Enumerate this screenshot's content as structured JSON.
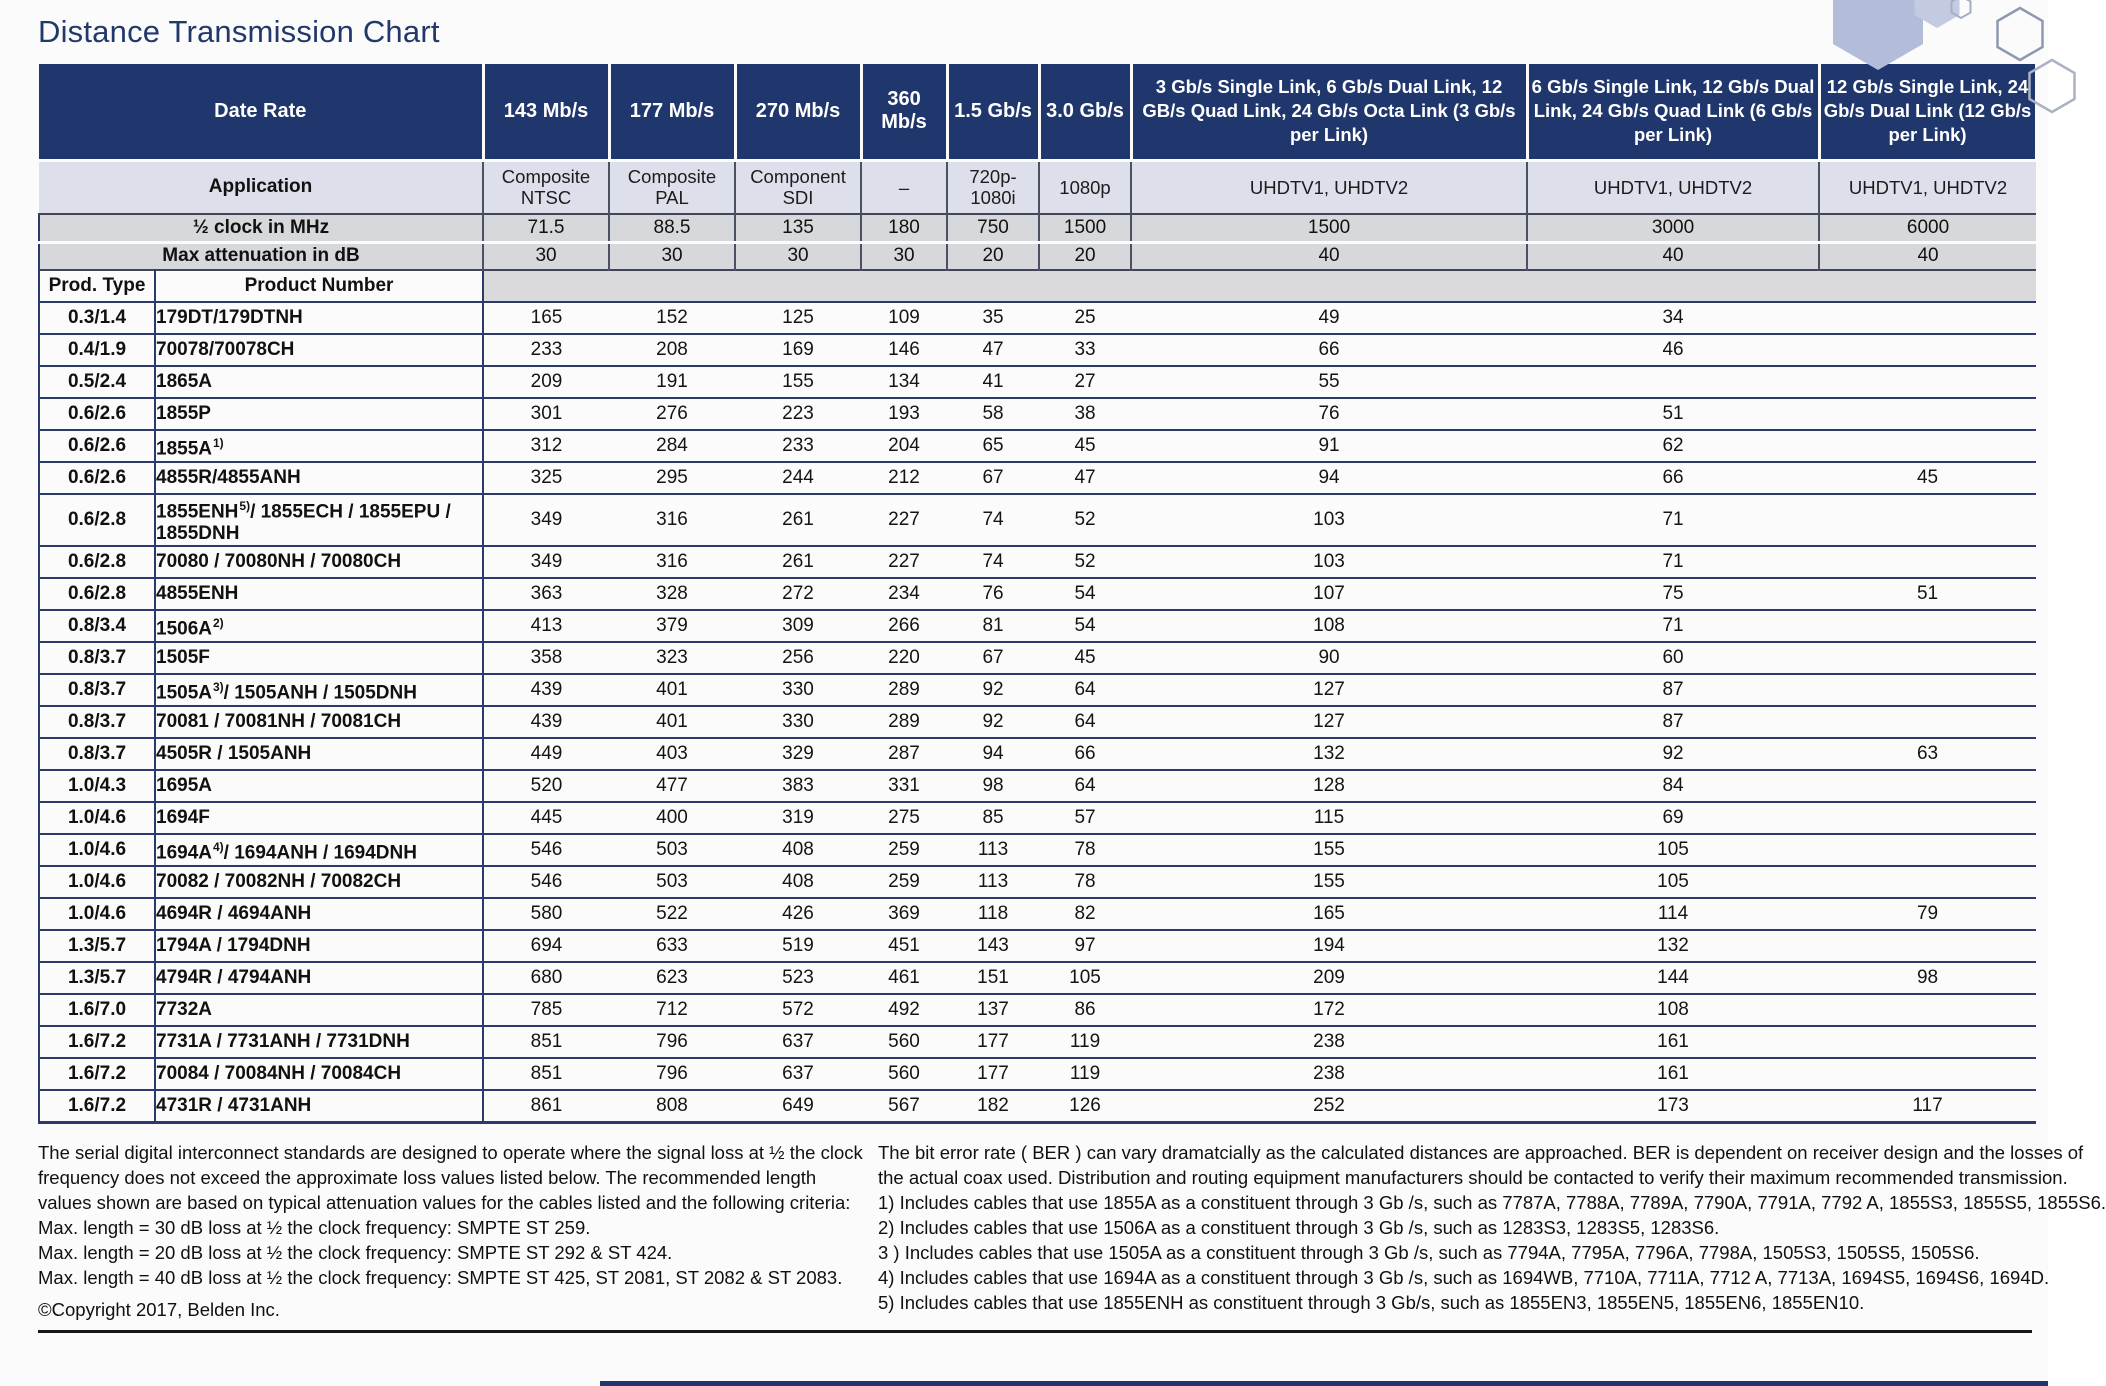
{
  "title": "Distance Transmission Chart",
  "colors": {
    "header_navy": "#20376e",
    "application_row": "#dde0eb",
    "gray_row": "#d6d8db",
    "title_blue": "#22386b",
    "rule_black": "#161616"
  },
  "table": {
    "header": {
      "date_rate_label": "Date Rate",
      "application_label": "Application",
      "half_clock_label": "½ clock in MHz",
      "max_att_label": "Max attenuation in dB",
      "prod_type_label": "Prod. Type",
      "product_number_label": "Product Number",
      "columns": [
        {
          "rate": "143 Mb/s",
          "application": "Composite NTSC",
          "half_clock": "71.5",
          "max_att": "30"
        },
        {
          "rate": "177 Mb/s",
          "application": "Composite PAL",
          "half_clock": "88.5",
          "max_att": "30"
        },
        {
          "rate": "270 Mb/s",
          "application": "Component SDI",
          "half_clock": "135",
          "max_att": "30"
        },
        {
          "rate": "360 Mb/s",
          "application": "–",
          "half_clock": "180",
          "max_att": "30"
        },
        {
          "rate": "1.5 Gb/s",
          "application": "720p- 1080i",
          "half_clock": "750",
          "max_att": "20"
        },
        {
          "rate": "3.0 Gb/s",
          "application": "1080p",
          "half_clock": "1500",
          "max_att": "20"
        },
        {
          "rate": "3 Gb/s Single Link, 6 Gb/s Dual Link, 12 GB/s Quad Link, 24 Gb/s Octa Link (3 Gb/s per Link)",
          "application": "UHDTV1, UHDTV2",
          "half_clock": "1500",
          "max_att": "40"
        },
        {
          "rate": "6 Gb/s Single Link, 12 Gb/s Dual Link, 24 Gb/s Quad Link (6 Gb/s per Link)",
          "application": "UHDTV1, UHDTV2",
          "half_clock": "3000",
          "max_att": "40"
        },
        {
          "rate": "12 Gb/s Single Link, 24 Gb/s Dual Link (12 Gb/s per Link)",
          "application": "UHDTV1, UHDTV2",
          "half_clock": "6000",
          "max_att": "40"
        }
      ]
    },
    "rows": [
      {
        "type": "0.3/1.4",
        "product": "179DT/179DTNH",
        "sup": "",
        "product_rest": "",
        "values": [
          "165",
          "152",
          "125",
          "109",
          "35",
          "25",
          "49",
          "34",
          ""
        ]
      },
      {
        "type": "0.4/1.9",
        "product": "70078/70078CH",
        "sup": "",
        "product_rest": "",
        "values": [
          "233",
          "208",
          "169",
          "146",
          "47",
          "33",
          "66",
          "46",
          ""
        ]
      },
      {
        "type": "0.5/2.4",
        "product": "1865A",
        "sup": "",
        "product_rest": "",
        "values": [
          "209",
          "191",
          "155",
          "134",
          "41",
          "27",
          "55",
          "",
          ""
        ]
      },
      {
        "type": "0.6/2.6",
        "product": "1855P",
        "sup": "",
        "product_rest": "",
        "values": [
          "301",
          "276",
          "223",
          "193",
          "58",
          "38",
          "76",
          "51",
          ""
        ]
      },
      {
        "type": "0.6/2.6",
        "product": "1855A",
        "sup": "1)",
        "product_rest": "",
        "values": [
          "312",
          "284",
          "233",
          "204",
          "65",
          "45",
          "91",
          "62",
          ""
        ]
      },
      {
        "type": "0.6/2.6",
        "product": "4855R/4855ANH",
        "sup": "",
        "product_rest": "",
        "values": [
          "325",
          "295",
          "244",
          "212",
          "67",
          "47",
          "94",
          "66",
          "45"
        ]
      },
      {
        "type": "0.6/2.8",
        "product": "1855ENH",
        "sup": "5)",
        "product_rest": "/ 1855ECH / 1855EPU / 1855DNH",
        "values": [
          "349",
          "316",
          "261",
          "227",
          "74",
          "52",
          "103",
          "71",
          ""
        ]
      },
      {
        "type": "0.6/2.8",
        "product": "70080 / 70080NH / 70080CH",
        "sup": "",
        "product_rest": "",
        "values": [
          "349",
          "316",
          "261",
          "227",
          "74",
          "52",
          "103",
          "71",
          ""
        ]
      },
      {
        "type": "0.6/2.8",
        "product": "4855ENH",
        "sup": "",
        "product_rest": "",
        "values": [
          "363",
          "328",
          "272",
          "234",
          "76",
          "54",
          "107",
          "75",
          "51"
        ]
      },
      {
        "type": "0.8/3.4",
        "product": "1506A",
        "sup": "2)",
        "product_rest": "",
        "values": [
          "413",
          "379",
          "309",
          "266",
          "81",
          "54",
          "108",
          "71",
          ""
        ]
      },
      {
        "type": "0.8/3.7",
        "product": "1505F",
        "sup": "",
        "product_rest": "",
        "values": [
          "358",
          "323",
          "256",
          "220",
          "67",
          "45",
          "90",
          "60",
          ""
        ]
      },
      {
        "type": "0.8/3.7",
        "product": "1505A",
        "sup": "3)",
        "product_rest": "/ 1505ANH / 1505DNH",
        "values": [
          "439",
          "401",
          "330",
          "289",
          "92",
          "64",
          "127",
          "87",
          ""
        ]
      },
      {
        "type": "0.8/3.7",
        "product": "70081 / 70081NH / 70081CH",
        "sup": "",
        "product_rest": "",
        "values": [
          "439",
          "401",
          "330",
          "289",
          "92",
          "64",
          "127",
          "87",
          ""
        ]
      },
      {
        "type": "0.8/3.7",
        "product": "4505R / 1505ANH",
        "sup": "",
        "product_rest": "",
        "values": [
          "449",
          "403",
          "329",
          "287",
          "94",
          "66",
          "132",
          "92",
          "63"
        ]
      },
      {
        "type": "1.0/4.3",
        "product": "1695A",
        "sup": "",
        "product_rest": "",
        "values": [
          "520",
          "477",
          "383",
          "331",
          "98",
          "64",
          "128",
          "84",
          ""
        ]
      },
      {
        "type": "1.0/4.6",
        "product": "1694F",
        "sup": "",
        "product_rest": "",
        "values": [
          "445",
          "400",
          "319",
          "275",
          "85",
          "57",
          "115",
          "69",
          ""
        ]
      },
      {
        "type": "1.0/4.6",
        "product": "1694A",
        "sup": "4)",
        "product_rest": "/ 1694ANH / 1694DNH",
        "values": [
          "546",
          "503",
          "408",
          "259",
          "113",
          "78",
          "155",
          "105",
          ""
        ]
      },
      {
        "type": "1.0/4.6",
        "product": "70082 / 70082NH / 70082CH",
        "sup": "",
        "product_rest": "",
        "values": [
          "546",
          "503",
          "408",
          "259",
          "113",
          "78",
          "155",
          "105",
          ""
        ]
      },
      {
        "type": "1.0/4.6",
        "product": "4694R / 4694ANH",
        "sup": "",
        "product_rest": "",
        "values": [
          "580",
          "522",
          "426",
          "369",
          "118",
          "82",
          "165",
          "114",
          "79"
        ]
      },
      {
        "type": "1.3/5.7",
        "product": "1794A / 1794DNH",
        "sup": "",
        "product_rest": "",
        "values": [
          "694",
          "633",
          "519",
          "451",
          "143",
          "97",
          "194",
          "132",
          ""
        ]
      },
      {
        "type": "1.3/5.7",
        "product": "4794R / 4794ANH",
        "sup": "",
        "product_rest": "",
        "values": [
          "680",
          "623",
          "523",
          "461",
          "151",
          "105",
          "209",
          "144",
          "98"
        ]
      },
      {
        "type": "1.6/7.0",
        "product": "7732A",
        "sup": "",
        "product_rest": "",
        "values": [
          "785",
          "712",
          "572",
          "492",
          "137",
          "86",
          "172",
          "108",
          ""
        ]
      },
      {
        "type": "1.6/7.2",
        "product": "7731A / 7731ANH / 7731DNH",
        "sup": "",
        "product_rest": "",
        "values": [
          "851",
          "796",
          "637",
          "560",
          "177",
          "119",
          "238",
          "161",
          ""
        ]
      },
      {
        "type": "1.6/7.2",
        "product": "70084 / 70084NH / 70084CH",
        "sup": "",
        "product_rest": "",
        "values": [
          "851",
          "796",
          "637",
          "560",
          "177",
          "119",
          "238",
          "161",
          ""
        ]
      },
      {
        "type": "1.6/7.2",
        "product": "4731R / 4731ANH",
        "sup": "",
        "product_rest": "",
        "values": [
          "861",
          "808",
          "649",
          "567",
          "182",
          "126",
          "252",
          "173",
          "117"
        ]
      }
    ]
  },
  "footer": {
    "left_lines": [
      "The serial digital interconnect standards are designed to operate where the signal loss at ½ the clock",
      "frequency does not exceed the approximate loss values listed below. The recommended length",
      "values shown are based on typical attenuation values for the cables listed and the following criteria:",
      "Max. length = 30 dB loss at ½ the clock frequency: SMPTE ST 259.",
      "Max. length = 20 dB loss at ½ the clock frequency: SMPTE ST 292 & ST 424.",
      "Max. length = 40 dB loss at ½ the clock frequency: SMPTE ST 425, ST 2081, ST 2082 & ST 2083."
    ],
    "copyright": "©Copyright 2017, Belden Inc.",
    "right_lines": [
      "The bit error rate ( BER ) can vary dramatcially as the calculated distances are approached. BER is dependent on receiver design and the losses of",
      "the actual coax used. Distribution and routing equipment manufacturers should be contacted to verify their maximum recommended transmission.",
      "1) Includes cables that use 1855A as a constituent through 3 Gb /s, such as 7787A, 7788A, 7789A, 7790A, 7791A, 7792 A, 1855S3, 1855S5, 1855S6.",
      "2) Includes cables that use 1506A as a constituent through 3 Gb /s, such as 1283S3, 1283S5, 1283S6.",
      "3 ) Includes cables that use 1505A as a constituent through 3 Gb /s, such as 7794A, 7795A, 7796A, 7798A, 1505S3, 1505S5, 1505S6.",
      "4) Includes cables that use 1694A as a constituent through 3 Gb /s, such as 1694WB, 7710A, 7711A, 7712 A, 7713A, 1694S5, 1694S6, 1694D.",
      "5) Includes cables that use 1855ENH as constituent through 3 Gb/s, such as 1855EN3, 1855EN5, 1855EN6, 1855EN10."
    ]
  }
}
